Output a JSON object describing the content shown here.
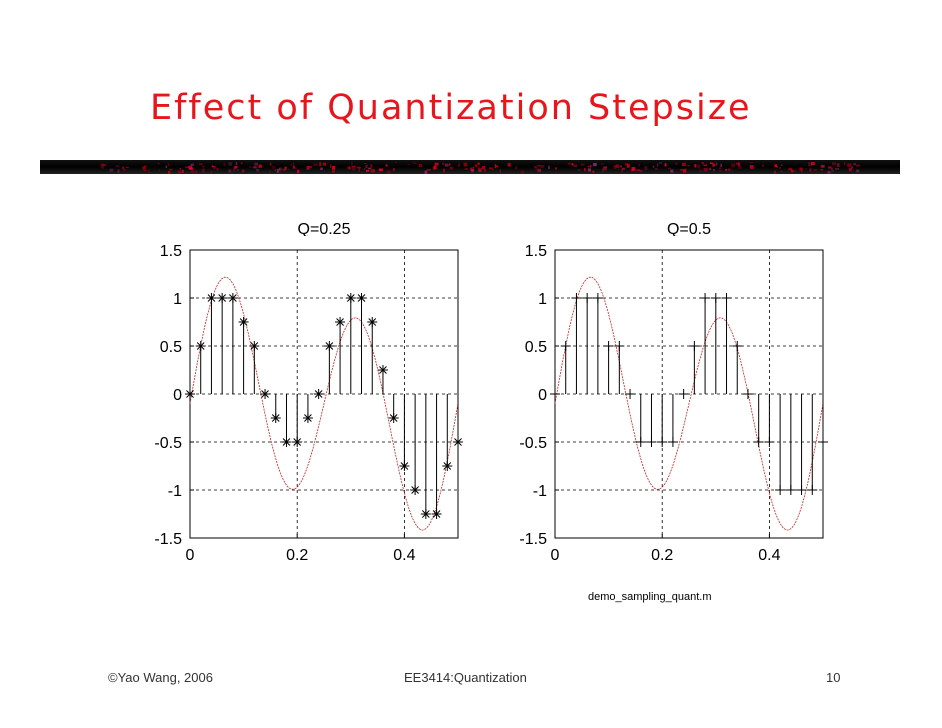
{
  "slide": {
    "title": "Effect of Quantization Stepsize",
    "title_color": "#e8161c",
    "footer_left": "©Yao Wang, 2006",
    "footer_center": "EE3414:Quantization",
    "page_number": "10",
    "file_caption": "demo_sampling_quant.m"
  },
  "chart_data": [
    {
      "type": "stem",
      "title": "Q=0.25",
      "xlim": [
        0,
        0.5
      ],
      "ylim": [
        -1.5,
        1.5
      ],
      "xticks": [
        0,
        0.2,
        0.4
      ],
      "xtick_labels": [
        "0",
        "0.2",
        "0.4"
      ],
      "yticks": [
        1.5,
        1,
        0.5,
        0,
        -0.5,
        -1,
        -1.5
      ],
      "ytick_labels": [
        "1.5",
        "1",
        "0.5",
        "0",
        "-0.5",
        "-1",
        "-1.5"
      ],
      "grid": true,
      "marker": "*",
      "x": [
        0,
        0.02,
        0.04,
        0.06,
        0.08,
        0.1,
        0.12,
        0.14,
        0.16,
        0.18,
        0.2,
        0.22,
        0.24,
        0.26,
        0.28,
        0.3,
        0.32,
        0.34,
        0.36,
        0.38,
        0.4,
        0.42,
        0.44,
        0.46,
        0.48,
        0.5
      ],
      "values": [
        0,
        0.5,
        1,
        1,
        1,
        0.75,
        0.5,
        0,
        -0.25,
        -0.5,
        -0.5,
        -0.25,
        0,
        0.5,
        0.75,
        1,
        1,
        0.75,
        0.25,
        -0.25,
        -0.75,
        -1,
        -1.25,
        -1.25,
        -0.75,
        -0.5
      ],
      "curve_color": "#cc2222"
    },
    {
      "type": "stem",
      "title": "Q=0.5",
      "xlim": [
        0,
        0.5
      ],
      "ylim": [
        -1.5,
        1.5
      ],
      "xticks": [
        0,
        0.2,
        0.4
      ],
      "xtick_labels": [
        "0",
        "0.2",
        "0.4"
      ],
      "yticks": [
        1.5,
        1,
        0.5,
        0,
        -0.5,
        -1,
        -1.5
      ],
      "ytick_labels": [
        "1.5",
        "1",
        "0.5",
        "0",
        "-0.5",
        "-1",
        "-1.5"
      ],
      "grid": true,
      "marker": "+",
      "x": [
        0,
        0.02,
        0.04,
        0.06,
        0.08,
        0.1,
        0.12,
        0.14,
        0.16,
        0.18,
        0.2,
        0.22,
        0.24,
        0.26,
        0.28,
        0.3,
        0.32,
        0.34,
        0.36,
        0.38,
        0.4,
        0.42,
        0.44,
        0.46,
        0.48,
        0.5
      ],
      "values": [
        0,
        0.5,
        1,
        1,
        1,
        0.5,
        0.5,
        0,
        -0.5,
        -0.5,
        -0.5,
        -0.5,
        0,
        0.5,
        1,
        1,
        1,
        0.5,
        0,
        -0.5,
        -0.5,
        -1,
        -1,
        -1,
        -1,
        -0.5
      ],
      "curve_color": "#cc2222"
    }
  ]
}
